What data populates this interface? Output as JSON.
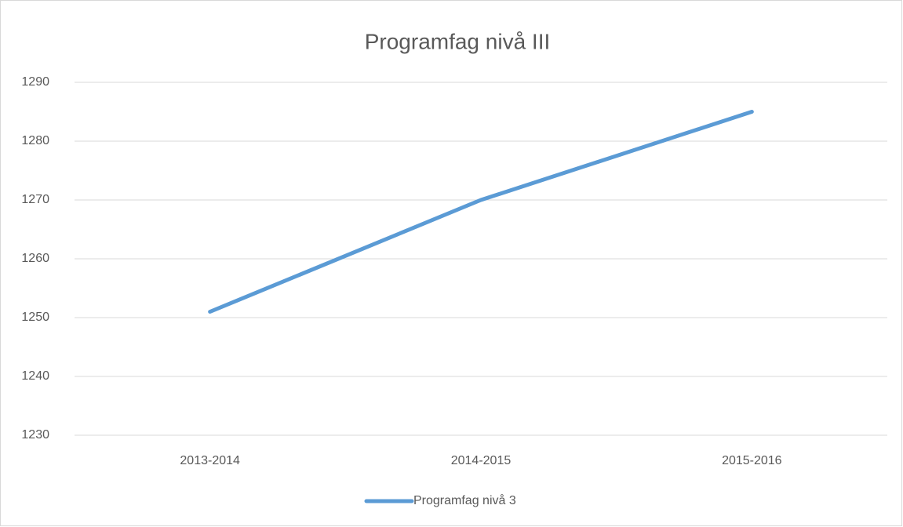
{
  "chart_data": {
    "type": "line",
    "title": "Programfag nivå III",
    "categories": [
      "2013-2014",
      "2014-2015",
      "2015-2016"
    ],
    "series": [
      {
        "name": "Programfag nivå 3",
        "color": "#5b9bd5",
        "values": [
          1251,
          1270,
          1285
        ]
      }
    ],
    "ylim": [
      1230,
      1290
    ],
    "yticks": [
      1230,
      1240,
      1250,
      1260,
      1270,
      1280,
      1290
    ],
    "grid": true,
    "legend": "bottom"
  }
}
